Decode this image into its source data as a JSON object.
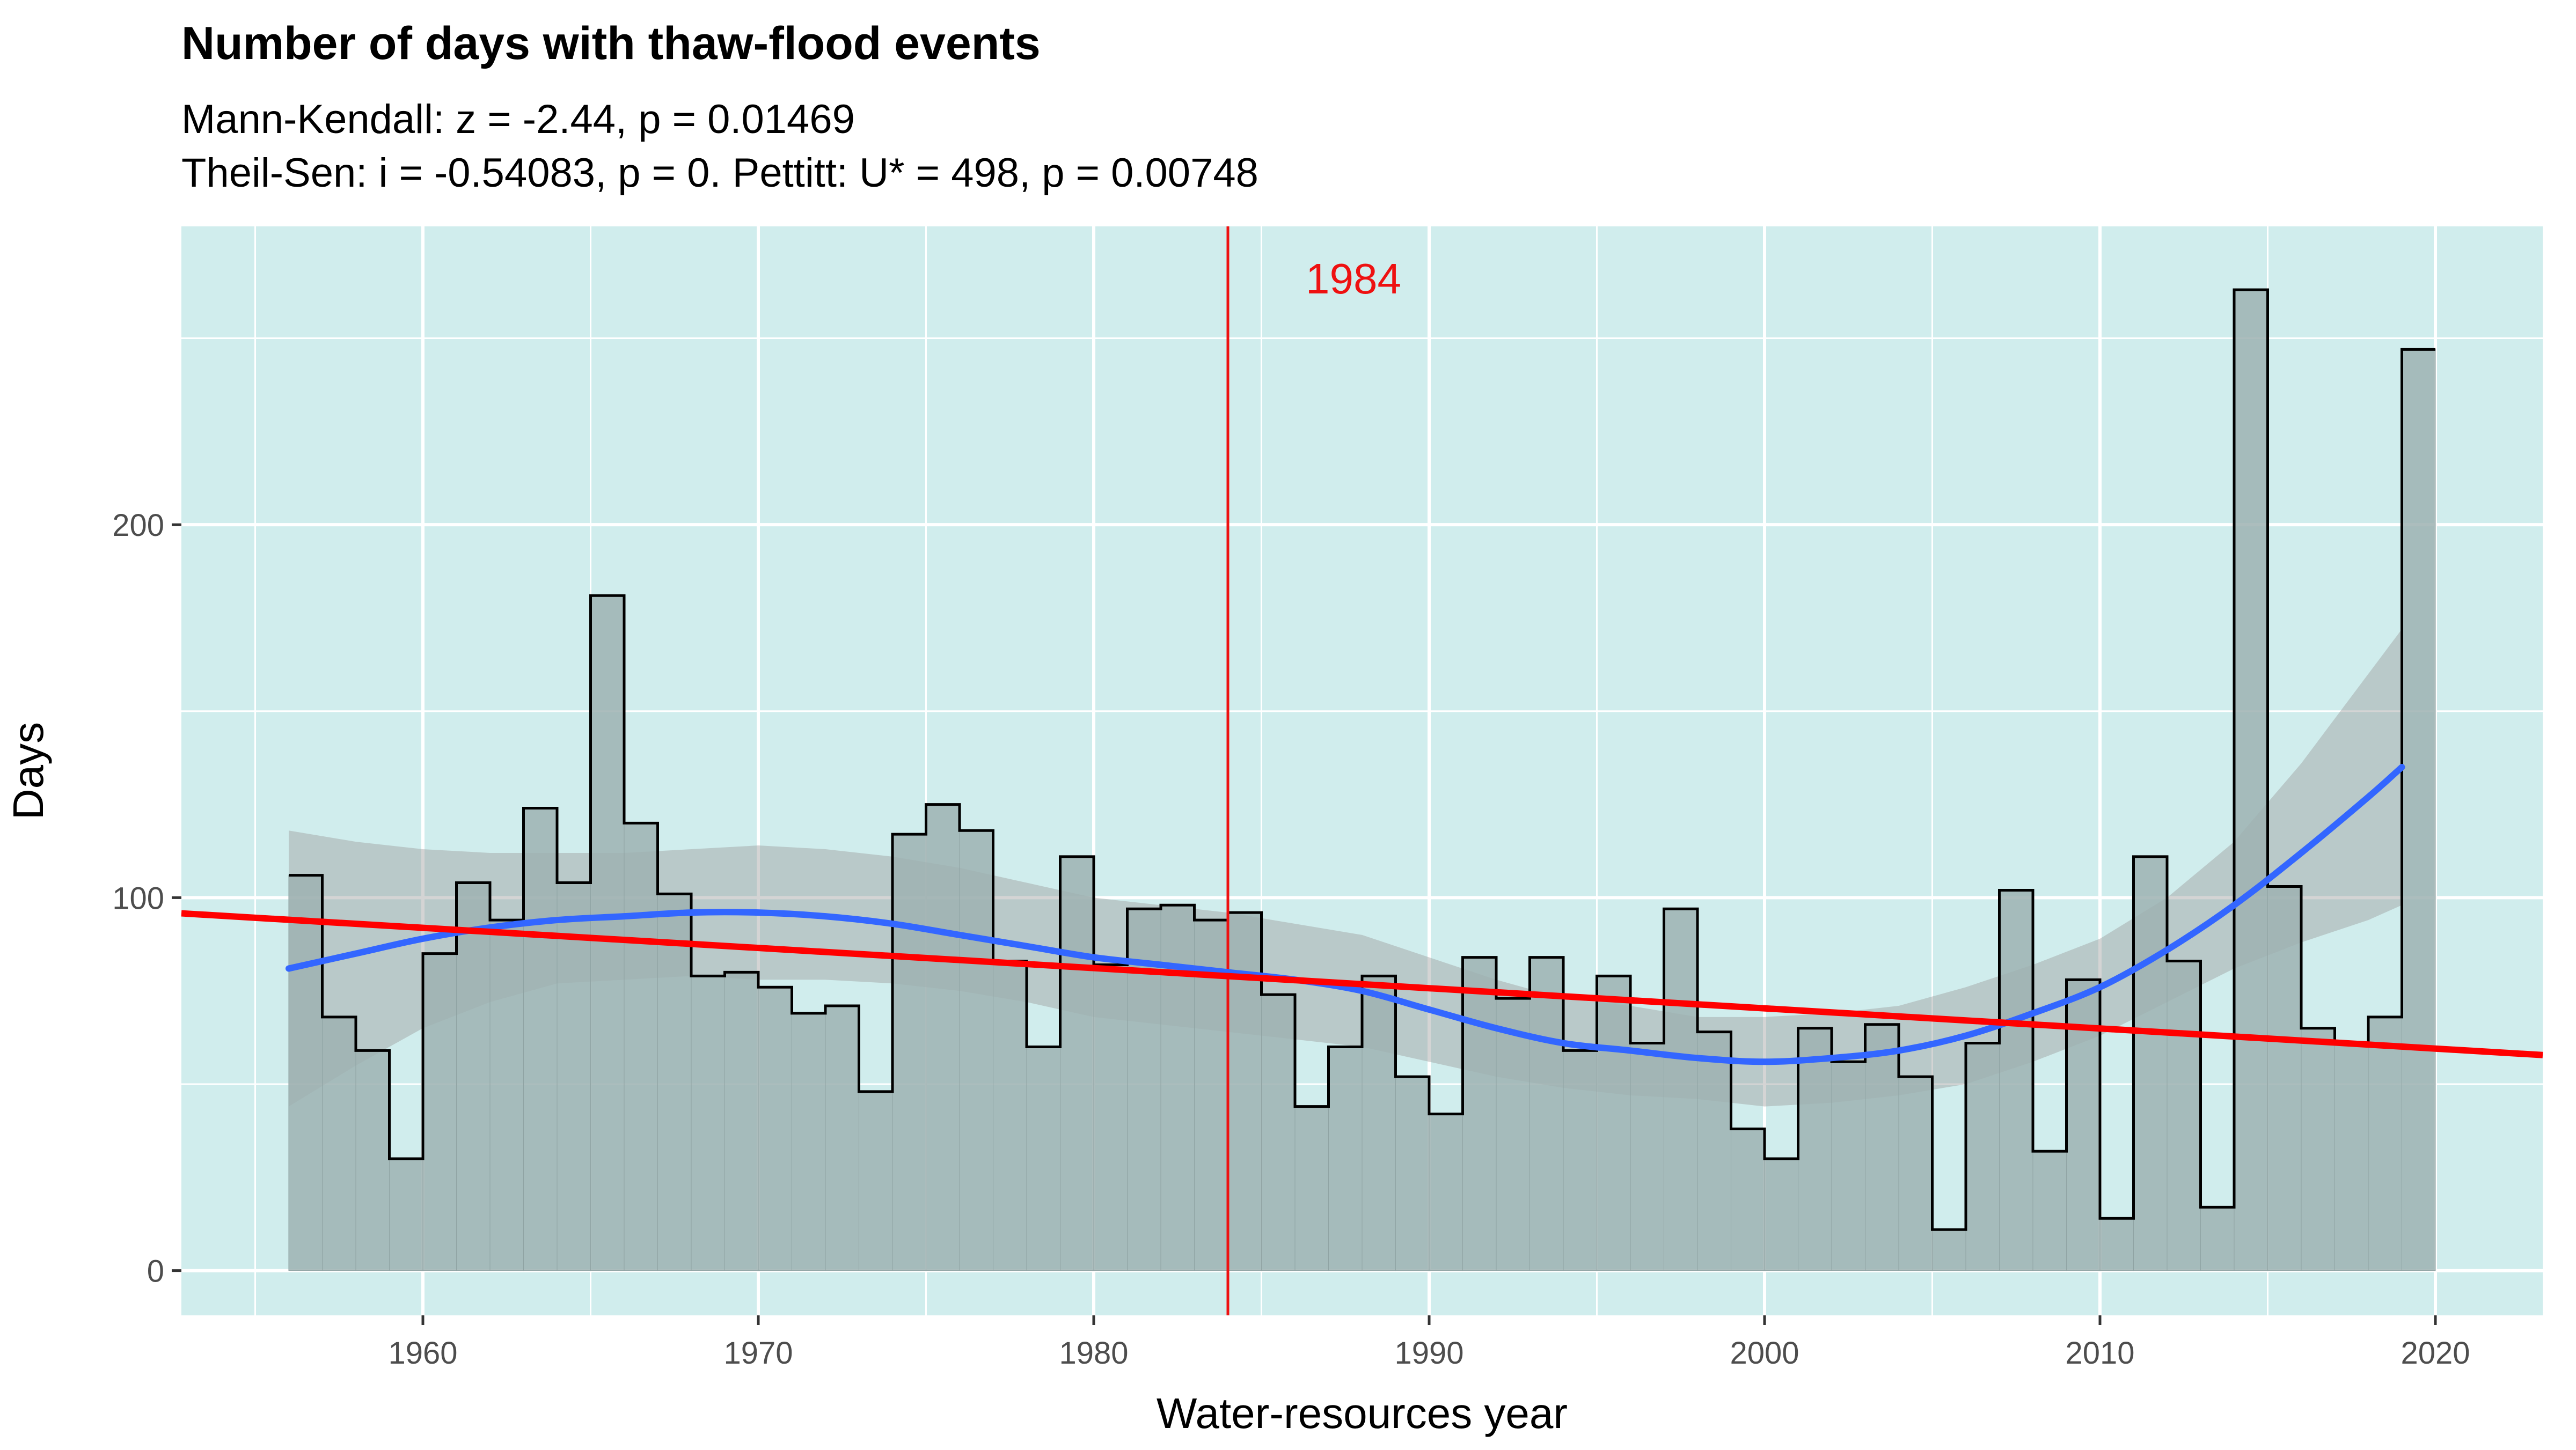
{
  "chart_data": {
    "type": "bar",
    "title": "Number of days with thaw-flood events",
    "subtitle_lines": [
      "Mann-Kendall: z = -2.44, p = 0.01469",
      "Theil-Sen: i = -0.54083, p = 0. Pettitt: U* = 498, p = 0.00748"
    ],
    "xlabel": "Water-resources year",
    "ylabel": "Days",
    "xlim": [
      1952.8,
      2023.2
    ],
    "ylim": [
      -12,
      280
    ],
    "x_ticks": [
      1960,
      1970,
      1980,
      1990,
      2000,
      2010,
      2020
    ],
    "y_ticks": [
      0,
      100,
      200
    ],
    "grid": true,
    "background_color": "#d0eded",
    "years": [
      1956,
      1957,
      1958,
      1959,
      1960,
      1961,
      1962,
      1963,
      1964,
      1965,
      1966,
      1967,
      1968,
      1969,
      1970,
      1971,
      1972,
      1973,
      1974,
      1975,
      1976,
      1977,
      1978,
      1979,
      1980,
      1981,
      1982,
      1983,
      1984,
      1985,
      1986,
      1987,
      1988,
      1989,
      1990,
      1991,
      1992,
      1993,
      1994,
      1995,
      1996,
      1997,
      1998,
      1999,
      2000,
      2001,
      2002,
      2003,
      2004,
      2005,
      2006,
      2007,
      2008,
      2009,
      2010,
      2011,
      2012,
      2013,
      2014,
      2015,
      2016,
      2017,
      2018,
      2019
    ],
    "values": [
      106,
      68,
      59,
      30,
      85,
      104,
      94,
      124,
      104,
      181,
      120,
      101,
      79,
      80,
      76,
      69,
      71,
      48,
      117,
      125,
      118,
      83,
      60,
      111,
      82,
      97,
      98,
      94,
      96,
      74,
      44,
      60,
      79,
      52,
      42,
      84,
      73,
      84,
      59,
      79,
      61,
      97,
      64,
      38,
      30,
      65,
      56,
      66,
      52,
      11,
      61,
      102,
      32,
      78,
      14,
      111,
      83,
      17,
      263,
      103,
      65,
      61,
      68,
      247
    ],
    "bar_color": "#9eb2b2",
    "smooth": {
      "name": "LOESS smooth",
      "color": "#3366ff",
      "x": [
        1956,
        1958,
        1960,
        1962,
        1964,
        1966,
        1968,
        1970,
        1972,
        1974,
        1976,
        1978,
        1980,
        1982,
        1984,
        1986,
        1988,
        1990,
        1992,
        1994,
        1996,
        1998,
        2000,
        2002,
        2004,
        2006,
        2008,
        2010,
        2012,
        2014,
        2016,
        2018,
        2019
      ],
      "y": [
        81,
        85,
        89,
        92,
        94,
        95,
        96,
        96,
        95,
        93,
        90,
        87,
        84,
        82,
        80,
        78,
        75,
        70,
        65,
        61,
        59,
        57,
        56,
        57,
        59,
        63,
        69,
        76,
        86,
        98,
        112,
        127,
        135
      ],
      "lower": [
        44,
        55,
        65,
        72,
        77,
        78,
        79,
        78,
        78,
        77,
        75,
        72,
        68,
        66,
        64,
        62,
        60,
        56,
        52,
        49,
        47,
        46,
        44,
        45,
        47,
        50,
        56,
        63,
        72,
        81,
        88,
        94,
        98
      ],
      "upper": [
        118,
        115,
        113,
        112,
        112,
        112,
        113,
        114,
        113,
        111,
        108,
        104,
        100,
        98,
        96,
        93,
        90,
        84,
        78,
        73,
        71,
        68,
        68,
        69,
        71,
        76,
        82,
        89,
        100,
        115,
        136,
        160,
        172
      ]
    },
    "trend_line": {
      "name": "Theil-Sen trend",
      "color": "#ff0000",
      "x": [
        1952.8,
        2023.2
      ],
      "y": [
        95.8,
        57.8
      ]
    },
    "change_point": {
      "year": 1984,
      "label": "1984",
      "color": "#ee1111"
    }
  }
}
